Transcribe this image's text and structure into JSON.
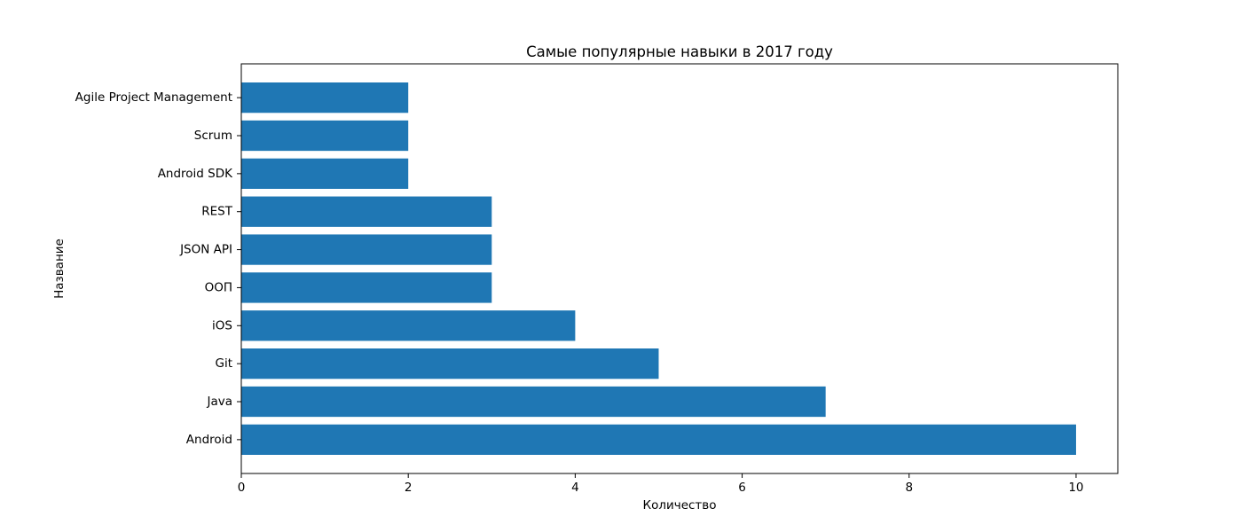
{
  "chart_data": {
    "type": "bar",
    "orientation": "horizontal",
    "title": "Самые популярные навыки в 2017 году",
    "xlabel": "Количество",
    "ylabel": "Название",
    "categories": [
      "Android",
      "Java",
      "Git",
      "iOS",
      "ООП",
      "JSON API",
      "REST",
      "Android SDK",
      "Scrum",
      "Agile Project Management"
    ],
    "values": [
      10,
      7,
      5,
      4,
      3,
      3,
      3,
      2,
      2,
      2
    ],
    "xlim": [
      0,
      10.5
    ],
    "xticks": [
      0,
      2,
      4,
      6,
      8,
      10
    ],
    "xtick_labels": [
      "0",
      "2",
      "4",
      "6",
      "8",
      "10"
    ],
    "bar_color": "#1f77b4",
    "grid": false,
    "legend": "none"
  }
}
